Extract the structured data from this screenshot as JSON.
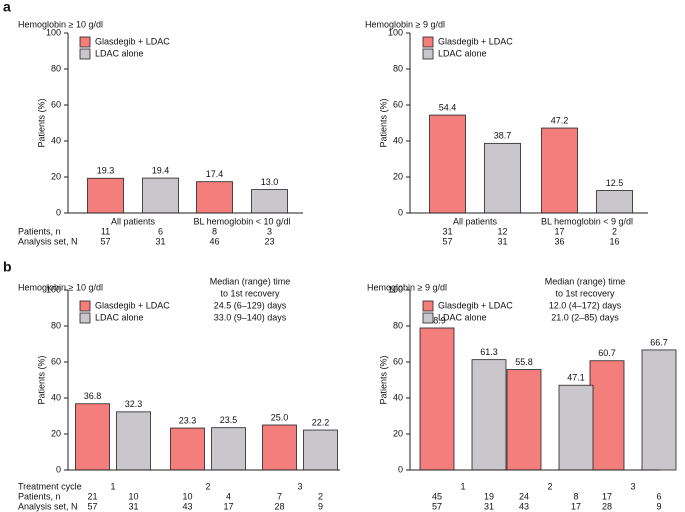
{
  "chart_data": [
    {
      "type": "bar",
      "panel_label": "a",
      "title": "Hemoglobin ≥ 10 g/dl",
      "ylabel": "Patients (%)",
      "categories": [
        "All patients",
        "BL hemoglobin < 10 g/dl"
      ],
      "series": [
        {
          "name": "Glasdegib + LDAC",
          "color": "#f47e7c",
          "values": [
            19.3,
            17.4
          ],
          "value_labels": [
            "19.3",
            "17.4"
          ]
        },
        {
          "name": "LDAC alone",
          "color": "#c9c6cc",
          "values": [
            19.4,
            13.0
          ],
          "value_labels": [
            "19.4",
            "13.0"
          ]
        }
      ],
      "ylim": [
        0,
        100
      ],
      "yticks": [
        0,
        20,
        40,
        60,
        80,
        100
      ],
      "legend": "upper left",
      "table": {
        "row_labels": [
          "Patients, n",
          "Analysis set, N"
        ],
        "rows": [
          [
            [
              11,
              6
            ],
            [
              8,
              3
            ]
          ],
          [
            [
              57,
              31
            ],
            [
              46,
              23
            ]
          ]
        ]
      }
    },
    {
      "type": "bar",
      "title": "Hemoglobin ≥ 9 g/dl",
      "ylabel": "Patients (%)",
      "categories": [
        "All patients",
        "BL hemoglobin < 9 g/dl"
      ],
      "series": [
        {
          "name": "Glasdegib + LDAC",
          "color": "#f47e7c",
          "values": [
            54.4,
            47.2
          ],
          "value_labels": [
            "54.4",
            "47.2"
          ]
        },
        {
          "name": "LDAC alone",
          "color": "#c9c6cc",
          "values": [
            38.7,
            12.5
          ],
          "value_labels": [
            "38.7",
            "12.5"
          ]
        }
      ],
      "ylim": [
        0,
        100
      ],
      "yticks": [
        0,
        20,
        40,
        60,
        80,
        100
      ],
      "legend": "upper left",
      "table": {
        "rows": [
          [
            [
              31,
              12
            ],
            [
              17,
              2
            ]
          ],
          [
            [
              57,
              31
            ],
            [
              36,
              16
            ]
          ]
        ]
      }
    },
    {
      "type": "bar",
      "panel_label": "b",
      "title": "Hemoglobin ≥ 10 g/dl",
      "ylabel": "Patients (%)",
      "xlabel": "Treatment cycle",
      "categories": [
        "1",
        "2",
        "3"
      ],
      "series": [
        {
          "name": "Glasdegib + LDAC",
          "color": "#f47e7c",
          "values": [
            36.8,
            23.3,
            25.0
          ],
          "value_labels": [
            "36.8",
            "23.3",
            "25.0"
          ]
        },
        {
          "name": "LDAC alone",
          "color": "#c9c6cc",
          "values": [
            32.3,
            23.5,
            22.2
          ],
          "value_labels": [
            "32.3",
            "23.5",
            "22.2"
          ]
        }
      ],
      "ylim": [
        0,
        100
      ],
      "yticks": [
        0,
        20,
        40,
        60,
        80,
        100
      ],
      "legend": "upper left",
      "annotation": {
        "heading": [
          "Median (range) time",
          "to 1st recovery"
        ],
        "lines": [
          "24.5 (6–129) days",
          "33.0 (9–140) days"
        ]
      },
      "table": {
        "row_labels": [
          "Patients, n",
          "Analysis set, N"
        ],
        "rows": [
          [
            [
              21,
              10
            ],
            [
              10,
              4
            ],
            [
              7,
              2
            ]
          ],
          [
            [
              57,
              31
            ],
            [
              43,
              17
            ],
            [
              28,
              9
            ]
          ]
        ]
      }
    },
    {
      "type": "bar",
      "title": "Hemoglobin ≥ 9 g/dl",
      "ylabel": "Patients (%)",
      "categories": [
        "1",
        "2",
        "3"
      ],
      "series": [
        {
          "name": "Glasdegib + LDAC",
          "color": "#f47e7c",
          "values": [
            78.9,
            55.8,
            60.7
          ],
          "value_labels": [
            "78.9",
            "55.8",
            "60.7"
          ]
        },
        {
          "name": "LDAC alone",
          "color": "#c9c6cc",
          "values": [
            61.3,
            47.1,
            66.7
          ],
          "value_labels": [
            "61.3",
            "47.1",
            "66.7"
          ]
        }
      ],
      "ylim": [
        0,
        100
      ],
      "yticks": [
        0,
        20,
        40,
        60,
        80,
        100
      ],
      "legend": "upper left",
      "annotation": {
        "heading": [
          "Median (range) time",
          "to 1st recovery"
        ],
        "lines": [
          "12.0 (4–172) days",
          "21.0 (2–85) days"
        ]
      },
      "table": {
        "rows": [
          [
            [
              45,
              19
            ],
            [
              24,
              8
            ],
            [
              17,
              6
            ]
          ],
          [
            [
              57,
              31
            ],
            [
              43,
              17
            ],
            [
              28,
              9
            ]
          ]
        ]
      }
    }
  ]
}
